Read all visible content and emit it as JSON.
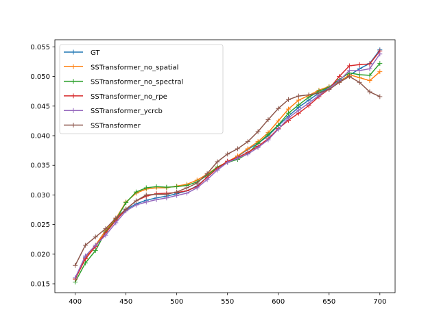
{
  "chart_data": {
    "type": "line",
    "title": "",
    "xlabel": "",
    "ylabel": "",
    "xlim": [
      380,
      715
    ],
    "ylim": [
      0.0135,
      0.0562
    ],
    "x_ticks": [
      400,
      450,
      500,
      550,
      600,
      650,
      700
    ],
    "x_tick_labels": [
      "400",
      "450",
      "500",
      "550",
      "600",
      "650",
      "700"
    ],
    "y_ticks": [
      0.015,
      0.02,
      0.025,
      0.03,
      0.035,
      0.04,
      0.045,
      0.05,
      0.055
    ],
    "y_tick_labels": [
      "0.015",
      "0.020",
      "0.025",
      "0.030",
      "0.035",
      "0.040",
      "0.045",
      "0.050",
      "0.055"
    ],
    "grid": false,
    "legend_position": "top-left",
    "x": [
      400,
      410,
      420,
      430,
      440,
      450,
      460,
      470,
      480,
      490,
      500,
      510,
      520,
      530,
      540,
      550,
      560,
      570,
      580,
      590,
      600,
      610,
      620,
      630,
      640,
      650,
      660,
      670,
      680,
      690,
      700
    ],
    "series": [
      {
        "name": "GT",
        "color": "#1f77b4",
        "values": [
          0.016,
          0.0195,
          0.0215,
          0.024,
          0.0258,
          0.0275,
          0.0285,
          0.0291,
          0.0295,
          0.0298,
          0.0302,
          0.0307,
          0.0315,
          0.033,
          0.0345,
          0.0356,
          0.0365,
          0.0377,
          0.0387,
          0.04,
          0.0417,
          0.0433,
          0.0448,
          0.046,
          0.0472,
          0.0481,
          0.0492,
          0.0502,
          0.0513,
          0.0522,
          0.0545
        ]
      },
      {
        "name": "SSTransformer_no_spatial",
        "color": "#ff7f0e",
        "values": [
          0.0158,
          0.0193,
          0.0215,
          0.024,
          0.026,
          0.0288,
          0.0303,
          0.031,
          0.0312,
          0.0312,
          0.0315,
          0.0318,
          0.0325,
          0.0335,
          0.0347,
          0.0356,
          0.0366,
          0.0378,
          0.039,
          0.0405,
          0.0425,
          0.0445,
          0.046,
          0.0468,
          0.0477,
          0.0483,
          0.049,
          0.0503,
          0.0498,
          0.0493,
          0.0508
        ]
      },
      {
        "name": "SSTransformer_no_spectral",
        "color": "#2ca02c",
        "values": [
          0.0153,
          0.0185,
          0.0206,
          0.0238,
          0.0258,
          0.0287,
          0.0305,
          0.0312,
          0.0314,
          0.0313,
          0.0314,
          0.0316,
          0.0322,
          0.0333,
          0.0347,
          0.0355,
          0.036,
          0.037,
          0.0387,
          0.0402,
          0.0418,
          0.0438,
          0.0452,
          0.0465,
          0.0475,
          0.0482,
          0.0495,
          0.0506,
          0.0503,
          0.0502,
          0.0522
        ]
      },
      {
        "name": "SSTransformer_no_rpe",
        "color": "#d62728",
        "values": [
          0.0158,
          0.0192,
          0.0213,
          0.0236,
          0.0257,
          0.0276,
          0.029,
          0.0298,
          0.0302,
          0.0303,
          0.0304,
          0.0307,
          0.0314,
          0.033,
          0.0345,
          0.0357,
          0.0363,
          0.0372,
          0.0382,
          0.0395,
          0.0412,
          0.0426,
          0.0438,
          0.0451,
          0.0466,
          0.0479,
          0.05,
          0.0518,
          0.052,
          0.0521,
          0.0543
        ]
      },
      {
        "name": "SSTransformer_ycrcb",
        "color": "#9467bd",
        "values": [
          0.016,
          0.0197,
          0.0215,
          0.0232,
          0.0253,
          0.0273,
          0.0283,
          0.0288,
          0.0292,
          0.0295,
          0.0299,
          0.0303,
          0.0312,
          0.0326,
          0.0342,
          0.0355,
          0.0362,
          0.0369,
          0.038,
          0.0393,
          0.0411,
          0.043,
          0.0443,
          0.0455,
          0.0468,
          0.048,
          0.0493,
          0.051,
          0.051,
          0.0513,
          0.0538
        ]
      },
      {
        "name": "SSTransformer",
        "color": "#8c564b",
        "values": [
          0.0181,
          0.0215,
          0.0229,
          0.0243,
          0.0261,
          0.0276,
          0.029,
          0.03,
          0.0301,
          0.0301,
          0.0305,
          0.0312,
          0.032,
          0.0336,
          0.0356,
          0.0369,
          0.0378,
          0.039,
          0.0407,
          0.0427,
          0.0446,
          0.0461,
          0.0467,
          0.0469,
          0.0472,
          0.0478,
          0.049,
          0.05,
          0.049,
          0.0474,
          0.0466
        ]
      }
    ]
  }
}
